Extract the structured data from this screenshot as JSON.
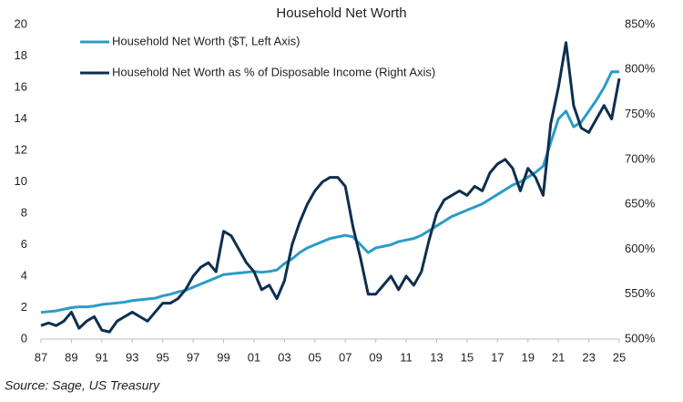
{
  "chart_data": {
    "type": "line",
    "title": "Household Net Worth",
    "source": "Source: Sage, US Treasury",
    "x": [
      1987,
      1987.5,
      1988,
      1988.5,
      1989,
      1989.5,
      1990,
      1990.5,
      1991,
      1991.5,
      1992,
      1992.5,
      1993,
      1993.5,
      1994,
      1994.5,
      1995,
      1995.5,
      1996,
      1996.5,
      1997,
      1997.5,
      1998,
      1998.5,
      1999,
      1999.5,
      2000,
      2000.5,
      2001,
      2001.5,
      2002,
      2002.5,
      2003,
      2003.5,
      2004,
      2004.5,
      2005,
      2005.5,
      2006,
      2006.5,
      2007,
      2007.5,
      2008,
      2008.5,
      2009,
      2009.5,
      2010,
      2010.5,
      2011,
      2011.5,
      2012,
      2012.5,
      2013,
      2013.5,
      2014,
      2014.5,
      2015,
      2015.5,
      2016,
      2016.5,
      2017,
      2017.5,
      2018,
      2018.5,
      2019,
      2019.5,
      2020,
      2020.5,
      2021,
      2021.5,
      2022,
      2022.5,
      2023,
      2023.5,
      2024,
      2024.5,
      2025
    ],
    "series": [
      {
        "name": "Household Net Worth ($T, Left Axis)",
        "color": "#2b9cc6",
        "values": [
          1.7,
          1.75,
          1.8,
          1.9,
          2.0,
          2.05,
          2.05,
          2.1,
          2.2,
          2.25,
          2.3,
          2.35,
          2.45,
          2.5,
          2.55,
          2.6,
          2.75,
          2.85,
          3.0,
          3.1,
          3.3,
          3.5,
          3.7,
          3.9,
          4.1,
          4.15,
          4.2,
          4.25,
          4.3,
          4.25,
          4.3,
          4.4,
          4.8,
          5.1,
          5.5,
          5.8,
          6.0,
          6.2,
          6.4,
          6.5,
          6.6,
          6.5,
          6.0,
          5.5,
          5.8,
          5.9,
          6.0,
          6.2,
          6.3,
          6.4,
          6.6,
          6.9,
          7.2,
          7.5,
          7.8,
          8.0,
          8.2,
          8.4,
          8.6,
          8.9,
          9.2,
          9.5,
          9.8,
          10.0,
          10.3,
          10.6,
          11.0,
          12.5,
          14.0,
          14.5,
          13.5,
          13.8,
          14.5,
          15.2,
          16.0,
          17.0,
          17.0
        ]
      },
      {
        "name": "Household Net Worth as % of Disposable Income (Right Axis)",
        "color": "#0d2f4f",
        "axis": "y2",
        "values": [
          515,
          518,
          515,
          520,
          530,
          512,
          520,
          525,
          510,
          508,
          520,
          525,
          530,
          525,
          520,
          530,
          540,
          540,
          545,
          555,
          570,
          580,
          585,
          575,
          620,
          615,
          600,
          585,
          575,
          555,
          560,
          545,
          565,
          605,
          630,
          650,
          665,
          675,
          680,
          680,
          670,
          625,
          590,
          550,
          550,
          560,
          570,
          555,
          570,
          560,
          575,
          610,
          640,
          655,
          660,
          665,
          660,
          670,
          665,
          685,
          695,
          700,
          690,
          665,
          690,
          680,
          660,
          740,
          780,
          830,
          760,
          735,
          730,
          745,
          760,
          745,
          790
        ]
      }
    ],
    "xlim": [
      1987,
      2025
    ],
    "xticks": [
      {
        "value": 1987,
        "label": "87"
      },
      {
        "value": 1989,
        "label": "89"
      },
      {
        "value": 1991,
        "label": "91"
      },
      {
        "value": 1993,
        "label": "93"
      },
      {
        "value": 1995,
        "label": "95"
      },
      {
        "value": 1997,
        "label": "97"
      },
      {
        "value": 1999,
        "label": "99"
      },
      {
        "value": 2001,
        "label": "01"
      },
      {
        "value": 2003,
        "label": "03"
      },
      {
        "value": 2005,
        "label": "05"
      },
      {
        "value": 2007,
        "label": "07"
      },
      {
        "value": 2009,
        "label": "09"
      },
      {
        "value": 2011,
        "label": "11"
      },
      {
        "value": 2013,
        "label": "13"
      },
      {
        "value": 2015,
        "label": "15"
      },
      {
        "value": 2017,
        "label": "17"
      },
      {
        "value": 2019,
        "label": "19"
      },
      {
        "value": 2021,
        "label": "21"
      },
      {
        "value": 2023,
        "label": "23"
      },
      {
        "value": 2025,
        "label": "25"
      }
    ],
    "ylim": [
      0,
      20
    ],
    "yticks": [
      0,
      2,
      4,
      6,
      8,
      10,
      12,
      14,
      16,
      18,
      20
    ],
    "y2lim": [
      500,
      850
    ],
    "y2ticks": [
      {
        "value": 500,
        "label": "500%"
      },
      {
        "value": 550,
        "label": "550%"
      },
      {
        "value": 600,
        "label": "600%"
      },
      {
        "value": 650,
        "label": "650%"
      },
      {
        "value": 700,
        "label": "700%"
      },
      {
        "value": 750,
        "label": "750%"
      },
      {
        "value": 800,
        "label": "800%"
      },
      {
        "value": 850,
        "label": "850%"
      }
    ],
    "grid": false,
    "legend": "upper-left"
  }
}
